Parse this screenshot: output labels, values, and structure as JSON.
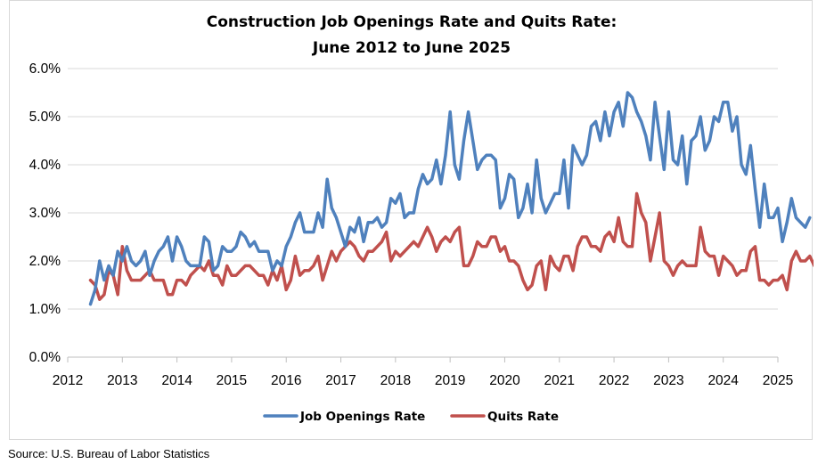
{
  "chart_data": {
    "type": "line",
    "title": [
      "Construction Job Openings Rate and Quits Rate:",
      "June 2012 to June 2025"
    ],
    "xlabel": "",
    "ylabel": "",
    "ylim": [
      0,
      6
    ],
    "yticks": [
      "0.0%",
      "1.0%",
      "2.0%",
      "3.0%",
      "4.0%",
      "5.0%",
      "6.0%"
    ],
    "xticks": [
      "2012",
      "2013",
      "2014",
      "2015",
      "2016",
      "2017",
      "2018",
      "2019",
      "2020",
      "2021",
      "2022",
      "2023",
      "2024",
      "2025"
    ],
    "grid": true,
    "legend_position": "bottom",
    "series": [
      {
        "name": "Job Openings Rate",
        "color": "#4f81bd",
        "values": [
          1.1,
          1.4,
          2.0,
          1.6,
          1.9,
          1.7,
          2.2,
          2.0,
          2.3,
          2.0,
          1.9,
          2.0,
          2.2,
          1.7,
          2.0,
          2.2,
          2.3,
          2.5,
          2.0,
          2.5,
          2.3,
          2.0,
          1.9,
          1.9,
          1.9,
          2.5,
          2.4,
          1.8,
          1.9,
          2.3,
          2.2,
          2.2,
          2.3,
          2.6,
          2.5,
          2.3,
          2.4,
          2.2,
          2.2,
          2.2,
          1.8,
          2.0,
          1.9,
          2.3,
          2.5,
          2.8,
          3.0,
          2.6,
          2.6,
          2.6,
          3.0,
          2.7,
          3.7,
          3.1,
          2.9,
          2.6,
          2.3,
          2.7,
          2.6,
          2.9,
          2.4,
          2.8,
          2.8,
          2.9,
          2.7,
          2.8,
          3.3,
          3.2,
          3.4,
          2.9,
          3.0,
          3.0,
          3.5,
          3.8,
          3.6,
          3.7,
          4.1,
          3.6,
          4.2,
          5.1,
          4.0,
          3.7,
          4.5,
          5.1,
          4.5,
          3.9,
          4.1,
          4.2,
          4.2,
          4.1,
          3.1,
          3.3,
          3.8,
          3.7,
          2.9,
          3.1,
          3.6,
          3.0,
          4.1,
          3.3,
          3.0,
          3.2,
          3.4,
          3.4,
          4.1,
          3.1,
          4.4,
          4.2,
          4.0,
          4.2,
          4.8,
          4.9,
          4.5,
          5.1,
          4.6,
          5.1,
          5.3,
          4.8,
          5.5,
          5.4,
          5.1,
          4.9,
          4.6,
          4.1,
          5.3,
          4.6,
          3.9,
          5.1,
          4.1,
          4.0,
          4.6,
          3.6,
          4.5,
          4.6,
          5.0,
          4.3,
          4.5,
          5.0,
          4.9,
          5.3,
          5.3,
          4.7,
          5.0,
          4.0,
          3.8,
          4.4,
          3.5,
          2.7,
          3.6,
          2.9,
          2.9,
          3.1,
          2.4,
          2.8,
          3.3,
          2.9,
          2.8,
          2.7,
          2.9
        ]
      },
      {
        "name": "Quits Rate",
        "color": "#c0504d",
        "values": [
          1.6,
          1.5,
          1.2,
          1.3,
          1.8,
          1.7,
          1.3,
          2.3,
          1.8,
          1.6,
          1.6,
          1.6,
          1.7,
          1.8,
          1.6,
          1.6,
          1.6,
          1.3,
          1.3,
          1.6,
          1.6,
          1.5,
          1.7,
          1.8,
          1.9,
          1.8,
          2.0,
          1.7,
          1.7,
          1.5,
          1.9,
          1.7,
          1.7,
          1.8,
          1.9,
          1.9,
          1.8,
          1.7,
          1.7,
          1.5,
          1.8,
          1.6,
          1.9,
          1.4,
          1.6,
          2.1,
          1.7,
          1.8,
          1.8,
          1.9,
          2.1,
          1.6,
          1.9,
          2.2,
          2.0,
          2.2,
          2.3,
          2.4,
          2.3,
          2.1,
          2.0,
          2.2,
          2.2,
          2.3,
          2.4,
          2.6,
          2.0,
          2.2,
          2.1,
          2.2,
          2.3,
          2.4,
          2.3,
          2.5,
          2.7,
          2.5,
          2.2,
          2.4,
          2.5,
          2.4,
          2.6,
          2.7,
          1.9,
          1.9,
          2.1,
          2.4,
          2.3,
          2.3,
          2.5,
          2.5,
          2.2,
          2.3,
          2.0,
          2.0,
          1.9,
          1.6,
          1.4,
          1.5,
          1.9,
          2.0,
          1.4,
          2.1,
          1.9,
          1.8,
          2.1,
          2.1,
          1.8,
          2.3,
          2.5,
          2.5,
          2.3,
          2.3,
          2.2,
          2.5,
          2.6,
          2.4,
          2.9,
          2.4,
          2.3,
          2.3,
          3.4,
          3.0,
          2.8,
          2.0,
          2.5,
          3.0,
          2.0,
          1.9,
          1.7,
          1.9,
          2.0,
          1.9,
          1.9,
          1.9,
          2.7,
          2.2,
          2.1,
          2.1,
          1.7,
          2.1,
          2.0,
          1.9,
          1.7,
          1.8,
          1.8,
          2.2,
          2.3,
          1.6,
          1.6,
          1.5,
          1.6,
          1.6,
          1.7,
          1.4,
          2.0,
          2.2,
          2.0,
          2.0,
          2.1,
          1.9
        ]
      }
    ]
  },
  "source": "Source: U.S. Bureau of Labor Statistics"
}
